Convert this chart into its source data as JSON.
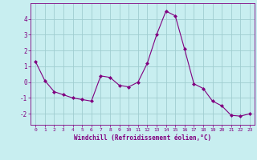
{
  "x": [
    0,
    1,
    2,
    3,
    4,
    5,
    6,
    7,
    8,
    9,
    10,
    11,
    12,
    13,
    14,
    15,
    16,
    17,
    18,
    19,
    20,
    21,
    22,
    23
  ],
  "y": [
    1.3,
    0.1,
    -0.6,
    -0.8,
    -1.0,
    -1.1,
    -1.2,
    0.4,
    0.3,
    -0.2,
    -0.3,
    0.0,
    1.2,
    3.0,
    4.5,
    4.2,
    2.1,
    -0.1,
    -0.4,
    -1.2,
    -1.5,
    -2.1,
    -2.15,
    -2.0
  ],
  "line_color": "#800080",
  "marker": "D",
  "marker_size": 2.0,
  "bg_color": "#c8eef0",
  "grid_color": "#a0cdd0",
  "xlabel": "Windchill (Refroidissement éolien,°C)",
  "xlabel_color": "#800080",
  "tick_color": "#800080",
  "ylabel_ticks": [
    -2,
    -1,
    0,
    1,
    2,
    3,
    4
  ],
  "xlim": [
    -0.5,
    23.5
  ],
  "ylim": [
    -2.7,
    5.0
  ],
  "title": ""
}
